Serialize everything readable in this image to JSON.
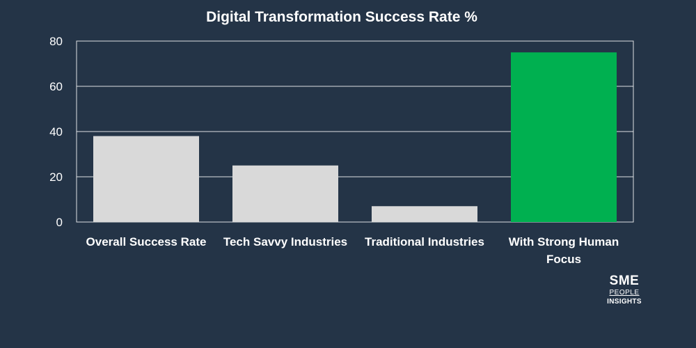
{
  "chart_data": {
    "type": "bar",
    "title": "Digital Transformation Success Rate %",
    "xlabel": "",
    "ylabel": "",
    "categories": [
      [
        "Overall Success Rate"
      ],
      [
        "Tech Savvy Industries"
      ],
      [
        "Traditional Industries"
      ],
      [
        "With Strong Human",
        "Focus"
      ]
    ],
    "values": [
      38,
      25,
      7,
      75
    ],
    "ylim": [
      0,
      80
    ],
    "yticks": [
      "0",
      "20",
      "40",
      "60",
      "80"
    ],
    "grid": true,
    "legend": "none",
    "colors": {
      "background": "#243447",
      "bar_default": "#d9d9d9",
      "bar_highlight": "#00b050",
      "gridline": "#ffffff"
    },
    "highlight_index": 3
  },
  "logo": {
    "line1": "SME",
    "line2": "PEOPLE",
    "line3": "INSIGHTS"
  }
}
